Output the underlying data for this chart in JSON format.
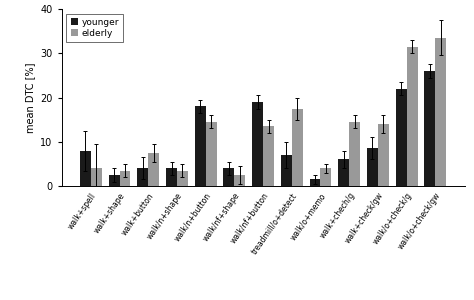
{
  "categories": [
    "walk+spell",
    "walk+shape",
    "walk+button",
    "walk/n+shape",
    "walk/n+button",
    "walk/nf+shape",
    "walk/nf+button",
    "treadmill/o+detect",
    "walk/o+memo",
    "walk+chech/g",
    "walk+check/gw",
    "walk/o+check/g",
    "walk/o+check/gw"
  ],
  "younger_values": [
    8.0,
    2.5,
    4.0,
    4.0,
    18.0,
    4.0,
    19.0,
    7.0,
    1.5,
    6.0,
    8.5,
    22.0,
    26.0
  ],
  "elderly_values": [
    4.0,
    3.5,
    7.5,
    3.5,
    14.5,
    2.5,
    13.5,
    17.5,
    4.0,
    14.5,
    14.0,
    31.5,
    33.5
  ],
  "younger_errors": [
    4.5,
    1.5,
    2.5,
    1.5,
    1.5,
    1.5,
    1.5,
    3.0,
    1.0,
    2.0,
    2.5,
    1.5,
    1.5
  ],
  "elderly_errors": [
    5.5,
    1.5,
    2.0,
    1.5,
    1.5,
    2.0,
    1.5,
    2.5,
    1.0,
    1.5,
    2.0,
    1.5,
    4.0
  ],
  "younger_color": "#1a1a1a",
  "elderly_color": "#999999",
  "ylabel": "mean DTC [%]",
  "ylim": [
    0,
    40
  ],
  "yticks": [
    0,
    10,
    20,
    30,
    40
  ],
  "bar_width": 0.38,
  "legend_labels": [
    "younger",
    "elderly"
  ],
  "bg_color": "#f0f0f0"
}
